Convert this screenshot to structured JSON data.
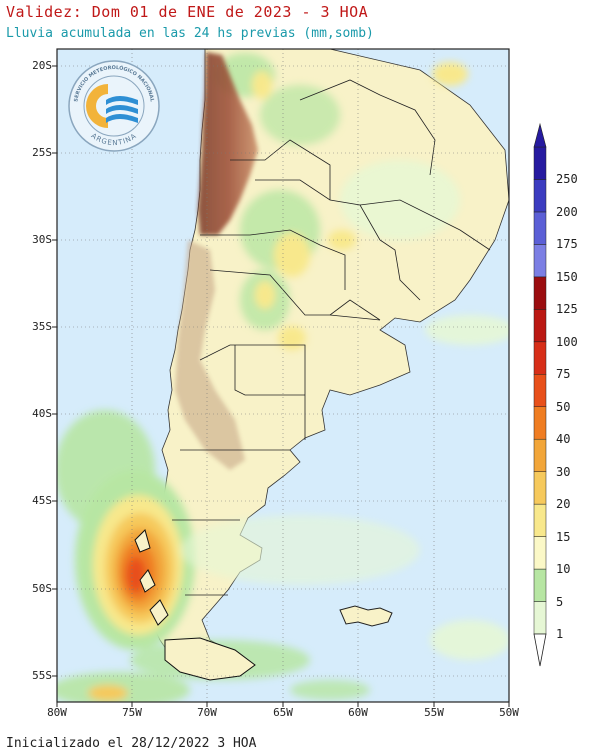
{
  "header": {
    "title": "Validez: Dom 01 de ENE de 2023 - 3 HOA",
    "subtitle": "Lluvia acumulada en las 24 hs previas (mm,somb)"
  },
  "footer": {
    "initialized": "Inicializado el 28/12/2022 3 HOA"
  },
  "axes": {
    "lat_labels": [
      "20S",
      "25S",
      "30S",
      "35S",
      "40S",
      "45S",
      "50S",
      "55S"
    ],
    "lon_labels": [
      "80W",
      "75W",
      "70W",
      "65W",
      "60W",
      "55W",
      "50W"
    ]
  },
  "logo": {
    "top_text": "SERVICIO METEOROLÓGICO NACIONAL",
    "bottom_text": "ARGENTINA"
  },
  "colorbar": {
    "levels": [
      "1",
      "5",
      "10",
      "15",
      "20",
      "30",
      "40",
      "50",
      "75",
      "100",
      "125",
      "150",
      "175",
      "200",
      "250"
    ],
    "colors": [
      "#e6f7d5",
      "#b7e6a3",
      "#fbf8c7",
      "#f8e88c",
      "#f6c95c",
      "#f2a63a",
      "#ef7d22",
      "#e8501a",
      "#d72e18",
      "#bb1813",
      "#9b0d10",
      "#7c7fe4",
      "#5b5fd6",
      "#3b3cc0",
      "#261aa0"
    ]
  },
  "colors": {
    "ocean": "#d6ecfb",
    "land_base": "#fbf8c7",
    "title": "#c01818",
    "subtitle": "#1a9aaa"
  }
}
